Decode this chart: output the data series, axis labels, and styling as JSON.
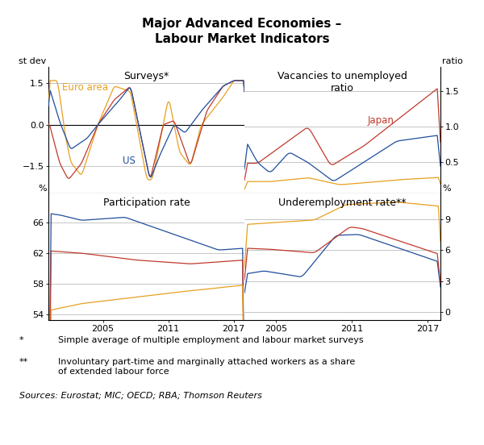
{
  "title": "Major Advanced Economies –\nLabour Market Indicators",
  "colors": {
    "blue": "#1F4E9C",
    "red": "#C0392B",
    "orange": "#E8A020"
  },
  "panel_tl": {
    "title": "Surveys*",
    "ylabel_left": "st dev",
    "ylim": [
      -2.5,
      2.1
    ],
    "yticks": [
      -1.5,
      0.0,
      1.5
    ],
    "labels": {
      "euro": "Euro area",
      "us": "US"
    }
  },
  "panel_tr": {
    "title": "Vacancies to unemployed\nratio",
    "ylabel_right": "ratio",
    "ylim": [
      0.05,
      1.85
    ],
    "yticks": [
      0.5,
      1.0,
      1.5
    ],
    "labels": {
      "japan": "Japan"
    }
  },
  "panel_bl": {
    "title": "Participation rate",
    "ylabel_left": "%",
    "ylim": [
      53.2,
      69.8
    ],
    "yticks": [
      54,
      58,
      62,
      66
    ]
  },
  "panel_br": {
    "title": "Underemployment rate**",
    "ylabel_right": "%",
    "ylim": [
      -0.8,
      11.5
    ],
    "yticks": [
      0,
      3,
      6,
      9
    ]
  },
  "xticks": [
    2005,
    2011,
    2017
  ],
  "footnote1_marker": "*",
  "footnote1_text": "Simple average of multiple employment and labour market surveys",
  "footnote2_marker": "**",
  "footnote2_text": "Involuntary part-time and marginally attached workers as a share\nof extended labour force",
  "source": "Sources: Eurostat; MIC; OECD; RBA; Thomson Reuters"
}
